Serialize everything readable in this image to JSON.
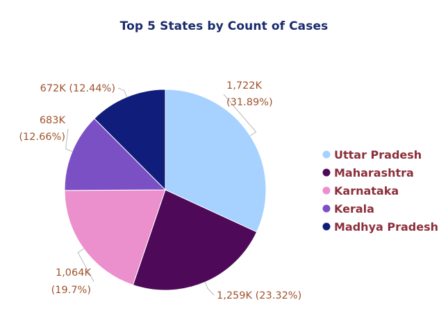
{
  "chart_data": {
    "type": "pie",
    "title": "Top 5 States by Count of Cases",
    "slices": [
      {
        "name": "Uttar Pradesh",
        "value": 1722,
        "value_label": "1,722K",
        "percent_label": "(31.89%)",
        "color": "#a7d1ff"
      },
      {
        "name": "Maharashtra",
        "value": 1259,
        "value_label": "1,259K",
        "percent_label": "(23.32%)",
        "color": "#4e0a58"
      },
      {
        "name": "Karnataka",
        "value": 1064,
        "value_label": "1,064K",
        "percent_label": "(19.7%)",
        "color": "#ec8fcd"
      },
      {
        "name": "Kerala",
        "value": 683,
        "value_label": "683K",
        "percent_label": "(12.66%)",
        "color": "#7b50c4"
      },
      {
        "name": "Madhya Pradesh",
        "value": 672,
        "value_label": "672K",
        "percent_label": "(12.44%)",
        "color": "#101d7a"
      }
    ],
    "legend_position": "right",
    "colors": {
      "title": "#1a2a6c",
      "data_label": "#a0522d",
      "legend_text": "#8b2e3a"
    }
  }
}
